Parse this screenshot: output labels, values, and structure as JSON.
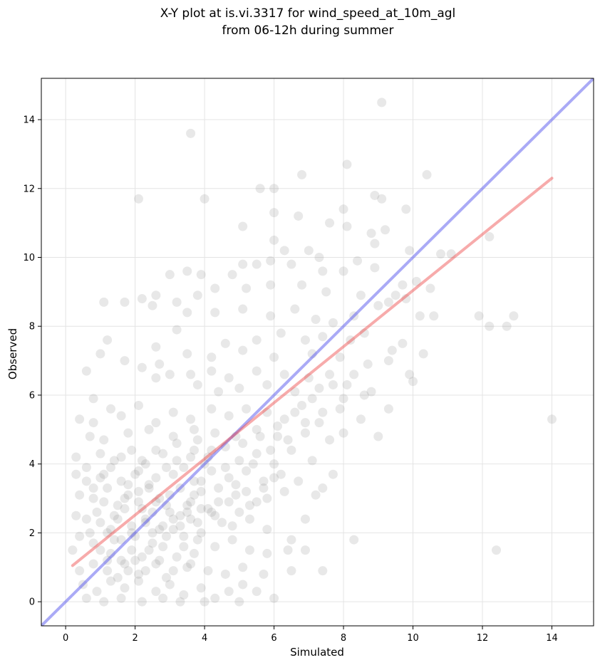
{
  "chart_data": {
    "type": "scatter",
    "title_lines": [
      "X-Y plot at is.vi.3317 for wind_speed_at_10m_agl",
      "from 06-12h during summer"
    ],
    "xlabel": "Simulated",
    "ylabel": "Observed",
    "xlim": [
      -0.7,
      15.2
    ],
    "ylim": [
      -0.7,
      15.2
    ],
    "xticks": [
      0,
      2,
      4,
      6,
      8,
      10,
      12,
      14
    ],
    "yticks": [
      0,
      2,
      4,
      6,
      8,
      10,
      12,
      14
    ],
    "grid": true,
    "point_color": "#808080",
    "one_to_one_line": {
      "color": "#5555ee",
      "from": [
        -0.7,
        -0.7
      ],
      "to": [
        15.2,
        15.2
      ]
    },
    "regression_line": {
      "color": "#ee4444",
      "from": [
        0.2,
        1.05
      ],
      "to": [
        14.0,
        12.3
      ]
    },
    "points": [
      [
        9.1,
        14.5
      ],
      [
        3.6,
        13.6
      ],
      [
        8.1,
        12.7
      ],
      [
        10.4,
        12.4
      ],
      [
        6.8,
        12.4
      ],
      [
        5.6,
        12.0
      ],
      [
        6.0,
        12.0
      ],
      [
        2.1,
        11.7
      ],
      [
        4.0,
        11.7
      ],
      [
        8.9,
        11.8
      ],
      [
        9.1,
        11.7
      ],
      [
        8.0,
        11.4
      ],
      [
        9.8,
        11.4
      ],
      [
        6.0,
        11.3
      ],
      [
        6.7,
        11.2
      ],
      [
        7.6,
        11.0
      ],
      [
        8.1,
        10.9
      ],
      [
        5.1,
        10.9
      ],
      [
        9.2,
        10.8
      ],
      [
        8.8,
        10.7
      ],
      [
        8.9,
        10.4
      ],
      [
        6.0,
        10.5
      ],
      [
        6.3,
        10.2
      ],
      [
        12.2,
        10.6
      ],
      [
        10.8,
        10.1
      ],
      [
        11.1,
        10.1
      ],
      [
        9.9,
        10.2
      ],
      [
        7.0,
        10.2
      ],
      [
        7.3,
        10.0
      ],
      [
        5.9,
        9.9
      ],
      [
        3.0,
        9.5
      ],
      [
        3.5,
        9.6
      ],
      [
        3.9,
        9.5
      ],
      [
        5.1,
        9.8
      ],
      [
        5.5,
        9.8
      ],
      [
        6.5,
        9.8
      ],
      [
        7.4,
        9.6
      ],
      [
        8.0,
        9.6
      ],
      [
        8.4,
        9.9
      ],
      [
        8.9,
        9.7
      ],
      [
        9.7,
        9.2
      ],
      [
        10.1,
        9.3
      ],
      [
        10.5,
        9.1
      ],
      [
        6.8,
        9.2
      ],
      [
        7.5,
        9.0
      ],
      [
        8.5,
        8.9
      ],
      [
        9.3,
        8.7
      ],
      [
        9.5,
        8.9
      ],
      [
        9.8,
        8.8
      ],
      [
        4.8,
        9.5
      ],
      [
        5.2,
        9.1
      ],
      [
        5.9,
        9.2
      ],
      [
        4.3,
        9.1
      ],
      [
        3.8,
        8.9
      ],
      [
        1.1,
        8.7
      ],
      [
        1.7,
        8.7
      ],
      [
        2.2,
        8.8
      ],
      [
        2.6,
        8.9
      ],
      [
        2.5,
        8.6
      ],
      [
        3.2,
        8.7
      ],
      [
        3.5,
        8.4
      ],
      [
        4.3,
        8.4
      ],
      [
        5.1,
        8.5
      ],
      [
        5.9,
        8.3
      ],
      [
        6.6,
        8.5
      ],
      [
        7.2,
        8.2
      ],
      [
        7.7,
        8.1
      ],
      [
        8.3,
        8.3
      ],
      [
        9.0,
        8.6
      ],
      [
        10.2,
        8.3
      ],
      [
        10.6,
        8.3
      ],
      [
        11.9,
        8.3
      ],
      [
        12.2,
        8.0
      ],
      [
        12.7,
        8.0
      ],
      [
        12.9,
        8.3
      ],
      [
        14.0,
        5.3
      ],
      [
        12.4,
        1.5
      ],
      [
        8.3,
        1.8
      ],
      [
        1.2,
        7.6
      ],
      [
        1.0,
        7.2
      ],
      [
        1.7,
        7.0
      ],
      [
        2.6,
        7.4
      ],
      [
        3.2,
        7.9
      ],
      [
        4.6,
        7.5
      ],
      [
        5.5,
        7.6
      ],
      [
        6.2,
        7.8
      ],
      [
        6.9,
        7.6
      ],
      [
        7.4,
        7.7
      ],
      [
        8.2,
        7.6
      ],
      [
        8.6,
        7.8
      ],
      [
        9.4,
        7.3
      ],
      [
        9.7,
        7.5
      ],
      [
        10.3,
        7.2
      ],
      [
        9.3,
        7.0
      ],
      [
        8.7,
        6.9
      ],
      [
        7.9,
        7.1
      ],
      [
        7.1,
        7.2
      ],
      [
        6.0,
        7.1
      ],
      [
        5.1,
        7.3
      ],
      [
        4.2,
        7.1
      ],
      [
        3.5,
        7.2
      ],
      [
        2.7,
        6.9
      ],
      [
        0.6,
        6.7
      ],
      [
        0.8,
        5.9
      ],
      [
        2.2,
        6.8
      ],
      [
        2.6,
        6.5
      ],
      [
        3.0,
        6.6
      ],
      [
        3.6,
        6.6
      ],
      [
        4.2,
        6.7
      ],
      [
        4.7,
        6.5
      ],
      [
        5.5,
        6.7
      ],
      [
        6.3,
        6.6
      ],
      [
        7.0,
        6.5
      ],
      [
        7.6,
        6.6
      ],
      [
        8.1,
        6.3
      ],
      [
        8.8,
        6.1
      ],
      [
        9.9,
        6.6
      ],
      [
        10.0,
        6.4
      ],
      [
        9.3,
        5.6
      ],
      [
        8.6,
        6.0
      ],
      [
        7.3,
        6.2
      ],
      [
        6.6,
        6.1
      ],
      [
        5.8,
        6.3
      ],
      [
        5.0,
        6.2
      ],
      [
        4.4,
        6.1
      ],
      [
        3.8,
        6.3
      ],
      [
        0.4,
        5.3
      ],
      [
        0.8,
        5.2
      ],
      [
        1.3,
        5.6
      ],
      [
        1.6,
        5.4
      ],
      [
        2.1,
        5.7
      ],
      [
        2.6,
        5.2
      ],
      [
        3.1,
        5.5
      ],
      [
        3.6,
        5.3
      ],
      [
        4.2,
        5.6
      ],
      [
        4.7,
        5.4
      ],
      [
        5.2,
        5.6
      ],
      [
        5.8,
        5.5
      ],
      [
        6.3,
        5.3
      ],
      [
        6.8,
        5.7
      ],
      [
        7.3,
        5.2
      ],
      [
        7.9,
        5.6
      ],
      [
        8.5,
        5.3
      ],
      [
        9.0,
        4.8
      ],
      [
        8.0,
        4.9
      ],
      [
        7.6,
        4.7
      ],
      [
        6.9,
        4.9
      ],
      [
        6.1,
        4.8
      ],
      [
        5.5,
        5.0
      ],
      [
        4.9,
        4.8
      ],
      [
        4.3,
        4.9
      ],
      [
        3.7,
        5.0
      ],
      [
        3.1,
        4.8
      ],
      [
        2.4,
        5.0
      ],
      [
        1.8,
        4.9
      ],
      [
        1.1,
        4.7
      ],
      [
        0.7,
        4.8
      ],
      [
        0.3,
        4.2
      ],
      [
        0.6,
        3.9
      ],
      [
        1.0,
        4.3
      ],
      [
        1.4,
        4.1
      ],
      [
        1.9,
        4.4
      ],
      [
        2.3,
        4.0
      ],
      [
        2.8,
        4.3
      ],
      [
        3.2,
        4.1
      ],
      [
        3.7,
        4.4
      ],
      [
        4.1,
        4.2
      ],
      [
        4.6,
        4.5
      ],
      [
        5.0,
        4.1
      ],
      [
        5.5,
        4.3
      ],
      [
        6.0,
        4.0
      ],
      [
        6.5,
        4.4
      ],
      [
        7.1,
        4.1
      ],
      [
        7.7,
        3.7
      ],
      [
        7.4,
        3.3
      ],
      [
        6.7,
        3.5
      ],
      [
        6.2,
        3.7
      ],
      [
        5.7,
        3.5
      ],
      [
        5.2,
        3.8
      ],
      [
        4.7,
        3.6
      ],
      [
        4.2,
        3.8
      ],
      [
        3.7,
        3.5
      ],
      [
        3.1,
        3.7
      ],
      [
        2.6,
        3.6
      ],
      [
        2.1,
        3.8
      ],
      [
        1.6,
        3.5
      ],
      [
        1.1,
        3.7
      ],
      [
        0.6,
        3.5
      ],
      [
        0.3,
        3.7
      ],
      [
        0.4,
        3.1
      ],
      [
        0.8,
        3.0
      ],
      [
        1.2,
        3.3
      ],
      [
        1.7,
        3.0
      ],
      [
        2.1,
        3.2
      ],
      [
        2.6,
        2.9
      ],
      [
        3.0,
        3.1
      ],
      [
        3.5,
        2.8
      ],
      [
        3.9,
        3.2
      ],
      [
        4.4,
        2.9
      ],
      [
        4.9,
        3.1
      ],
      [
        5.3,
        2.8
      ],
      [
        5.8,
        3.0
      ],
      [
        6.3,
        3.2
      ],
      [
        6.9,
        2.4
      ],
      [
        7.2,
        3.1
      ],
      [
        6.5,
        1.8
      ],
      [
        5.8,
        2.1
      ],
      [
        5.3,
        2.4
      ],
      [
        4.8,
        2.2
      ],
      [
        4.3,
        2.5
      ],
      [
        3.8,
        2.3
      ],
      [
        3.3,
        2.5
      ],
      [
        2.8,
        2.2
      ],
      [
        2.3,
        2.4
      ],
      [
        1.9,
        2.2
      ],
      [
        1.4,
        2.5
      ],
      [
        1.0,
        2.3
      ],
      [
        0.6,
        2.4
      ],
      [
        0.3,
        2.5
      ],
      [
        0.4,
        1.9
      ],
      [
        0.8,
        1.7
      ],
      [
        1.2,
        2.0
      ],
      [
        1.6,
        1.8
      ],
      [
        2.0,
        1.9
      ],
      [
        2.5,
        1.7
      ],
      [
        2.9,
        1.9
      ],
      [
        3.4,
        1.6
      ],
      [
        3.8,
        1.8
      ],
      [
        4.3,
        1.6
      ],
      [
        4.8,
        1.8
      ],
      [
        5.3,
        1.5
      ],
      [
        5.8,
        1.4
      ],
      [
        6.4,
        1.5
      ],
      [
        6.9,
        1.5
      ],
      [
        7.4,
        0.9
      ],
      [
        6.5,
        0.9
      ],
      [
        5.7,
        0.8
      ],
      [
        5.1,
        1.0
      ],
      [
        4.6,
        0.8
      ],
      [
        4.1,
        0.9
      ],
      [
        3.6,
        1.1
      ],
      [
        3.1,
        0.9
      ],
      [
        2.6,
        1.1
      ],
      [
        2.1,
        0.8
      ],
      [
        1.7,
        1.1
      ],
      [
        1.2,
        0.9
      ],
      [
        0.8,
        1.1
      ],
      [
        0.4,
        0.9
      ],
      [
        0.2,
        1.5
      ],
      [
        0.5,
        0.5
      ],
      [
        0.9,
        0.3
      ],
      [
        1.3,
        0.6
      ],
      [
        1.7,
        0.4
      ],
      [
        2.1,
        0.6
      ],
      [
        2.6,
        0.3
      ],
      [
        3.0,
        0.5
      ],
      [
        3.4,
        0.2
      ],
      [
        3.9,
        0.4
      ],
      [
        4.3,
        0.1
      ],
      [
        4.7,
        0.3
      ],
      [
        5.1,
        0.5
      ],
      [
        5.5,
        0.3
      ],
      [
        6.0,
        0.1
      ],
      [
        0.6,
        0.1
      ],
      [
        1.1,
        0.0
      ],
      [
        1.6,
        0.1
      ],
      [
        2.2,
        0.0
      ],
      [
        2.8,
        0.1
      ],
      [
        3.3,
        0.0
      ],
      [
        4.0,
        0.0
      ],
      [
        5.0,
        0.0
      ],
      [
        1.5,
        2.8
      ],
      [
        1.8,
        3.1
      ],
      [
        2.2,
        2.7
      ],
      [
        2.4,
        3.4
      ],
      [
        2.7,
        3.0
      ],
      [
        3.0,
        2.6
      ],
      [
        3.3,
        3.3
      ],
      [
        3.6,
        2.9
      ],
      [
        3.9,
        3.5
      ],
      [
        4.1,
        2.7
      ],
      [
        4.4,
        3.3
      ],
      [
        4.6,
        3.9
      ],
      [
        4.9,
        3.4
      ],
      [
        5.1,
        4.6
      ],
      [
        5.4,
        4.0
      ],
      [
        5.6,
        4.8
      ],
      [
        5.9,
        4.4
      ],
      [
        6.1,
        5.1
      ],
      [
        6.4,
        4.7
      ],
      [
        6.6,
        5.5
      ],
      [
        6.9,
        5.2
      ],
      [
        7.1,
        5.9
      ],
      [
        7.4,
        5.5
      ],
      [
        7.7,
        6.3
      ],
      [
        8.0,
        5.9
      ],
      [
        8.3,
        6.6
      ],
      [
        1.3,
        1.4
      ],
      [
        1.6,
        1.2
      ],
      [
        1.9,
        1.5
      ],
      [
        2.2,
        1.3
      ],
      [
        2.5,
        2.0
      ],
      [
        2.8,
        1.6
      ],
      [
        3.1,
        2.1
      ],
      [
        3.4,
        1.9
      ],
      [
        3.6,
        2.4
      ],
      [
        3.9,
        2.0
      ],
      [
        4.2,
        2.6
      ],
      [
        4.5,
        2.3
      ],
      [
        4.7,
        2.9
      ],
      [
        5.0,
        2.6
      ],
      [
        5.2,
        3.2
      ],
      [
        5.5,
        2.9
      ],
      [
        5.7,
        3.3
      ],
      [
        6.0,
        3.6
      ],
      [
        1.0,
        1.5
      ],
      [
        1.2,
        1.2
      ],
      [
        1.4,
        1.8
      ],
      [
        1.5,
        0.7
      ],
      [
        1.8,
        0.9
      ],
      [
        2.0,
        1.2
      ],
      [
        2.3,
        0.9
      ],
      [
        2.4,
        1.5
      ],
      [
        2.7,
        1.2
      ],
      [
        2.9,
        0.7
      ],
      [
        3.2,
        1.3
      ],
      [
        3.5,
        1.0
      ],
      [
        3.7,
        1.4
      ],
      [
        0.7,
        2.0
      ],
      [
        0.9,
        2.6
      ],
      [
        1.1,
        2.9
      ],
      [
        1.3,
        2.1
      ],
      [
        1.5,
        2.4
      ],
      [
        1.7,
        2.7
      ],
      [
        1.9,
        2.0
      ],
      [
        2.1,
        2.9
      ],
      [
        2.3,
        2.3
      ],
      [
        2.5,
        2.6
      ],
      [
        2.7,
        2.1
      ],
      [
        2.9,
        2.8
      ],
      [
        3.1,
        2.4
      ],
      [
        3.3,
        2.2
      ],
      [
        3.5,
        2.6
      ],
      [
        3.7,
        3.1
      ],
      [
        3.9,
        2.7
      ],
      [
        0.8,
        3.3
      ],
      [
        1.0,
        3.6
      ],
      [
        1.3,
        3.9
      ],
      [
        1.6,
        4.2
      ],
      [
        1.8,
        3.4
      ],
      [
        2.0,
        3.7
      ],
      [
        2.2,
        4.1
      ],
      [
        2.4,
        3.3
      ],
      [
        2.6,
        4.4
      ],
      [
        2.9,
        3.9
      ],
      [
        3.2,
        4.6
      ],
      [
        3.4,
        3.9
      ],
      [
        3.6,
        4.2
      ],
      [
        3.8,
        4.7
      ],
      [
        4.0,
        4.0
      ],
      [
        4.2,
        4.4
      ]
    ]
  }
}
